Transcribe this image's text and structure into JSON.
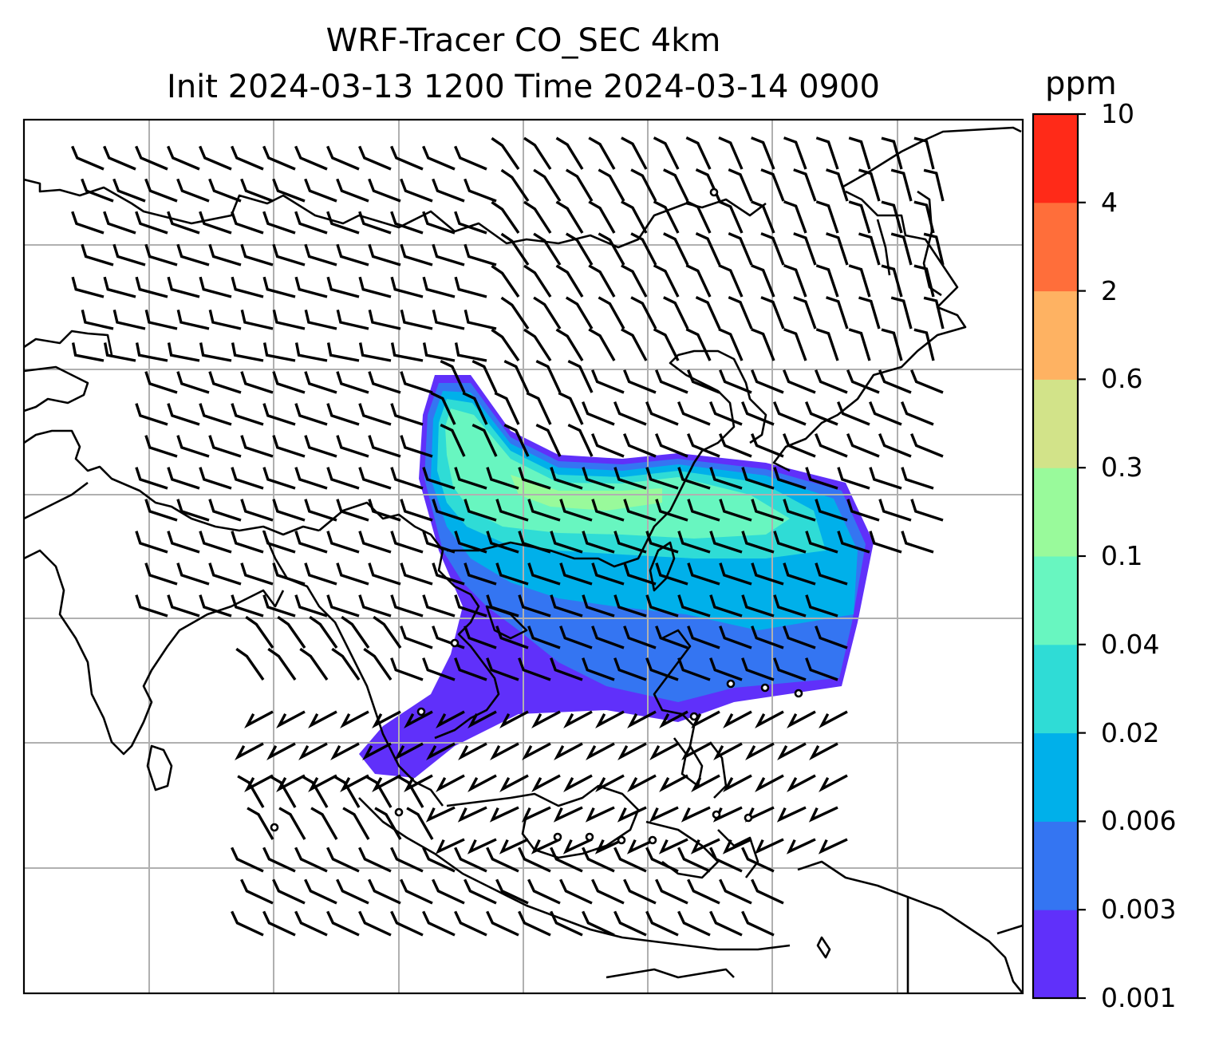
{
  "title": {
    "line1": "WRF-Tracer CO_SEC 4km",
    "line2": "Init 2024-03-13 1200 Time 2024-03-14 0900"
  },
  "colorbar": {
    "unit": "ppm",
    "ticks": [
      "0.001",
      "0.003",
      "0.006",
      "0.02",
      "0.04",
      "0.1",
      "0.3",
      "0.6",
      "2",
      "4",
      "10"
    ],
    "colors": [
      "#6030fa",
      "#3475f2",
      "#00b0ea",
      "#2fdcd6",
      "#68f6c0",
      "#99fa9b",
      "#d2e389",
      "#feb262",
      "#ff6e3a",
      "#ff2a18"
    ]
  },
  "map": {
    "gridlines": true,
    "coastlines": true,
    "wind_barbs": true
  }
}
